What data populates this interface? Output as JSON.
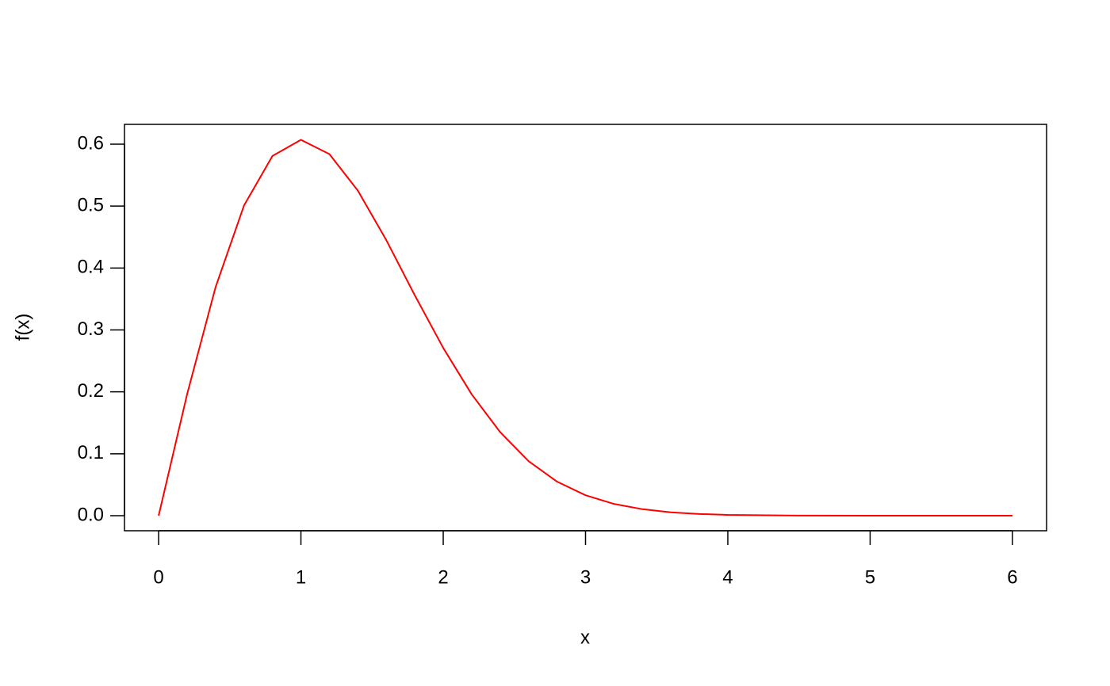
{
  "chart_data": {
    "type": "line",
    "xlabel": "x",
    "ylabel": "f(x)",
    "x": [
      0,
      0.2,
      0.4,
      0.6,
      0.8,
      1.0,
      1.2,
      1.4,
      1.6,
      1.8,
      2.0,
      2.2,
      2.4,
      2.6,
      2.8,
      3.0,
      3.2,
      3.4,
      3.6,
      3.8,
      4.0,
      4.5,
      5.0,
      5.5,
      6.0
    ],
    "series": [
      {
        "color": "#ff0000",
        "values": [
          0,
          0.196,
          0.369,
          0.501,
          0.581,
          0.607,
          0.584,
          0.525,
          0.445,
          0.356,
          0.271,
          0.196,
          0.135,
          0.088,
          0.055,
          0.033,
          0.019,
          0.0105,
          0.0055,
          0.0028,
          0.0013,
          0.0002,
          0,
          0,
          0
        ]
      }
    ],
    "xlim": [
      -0.24,
      6.24
    ],
    "ylim": [
      -0.0243,
      0.632
    ],
    "xticks": [
      0,
      1,
      2,
      3,
      4,
      5,
      6
    ],
    "yticks": [
      {
        "value": 0,
        "label": "0.0"
      },
      0.1,
      0.2,
      0.3,
      0.4,
      0.5,
      0.6
    ]
  }
}
